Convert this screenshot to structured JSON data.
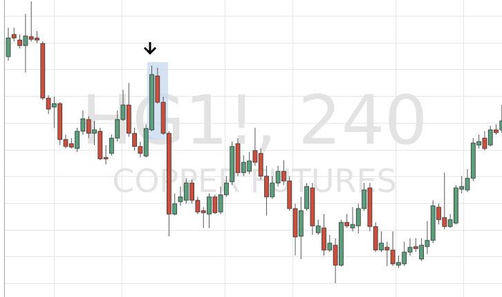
{
  "chart_data": {
    "type": "candlestick",
    "title": "HG1!, 240",
    "subtitle": "COPPER FUTURES",
    "ylim": [
      0,
      430
    ],
    "grid": true,
    "up_color": "#5a9e7b",
    "down_color": "#c9503f",
    "open": [
      348,
      380,
      372,
      364,
      377,
      375,
      367,
      288,
      275,
      280,
      228,
      222,
      215,
      240,
      257,
      237,
      240,
      202,
      208,
      230,
      257,
      278,
      237,
      218,
      204,
      242,
      320,
      282,
      237,
      120,
      138,
      140,
      165,
      140,
      125,
      120,
      145,
      123,
      148,
      167,
      222,
      180,
      182,
      212,
      208,
      175,
      145,
      165,
      182,
      168,
      128,
      88,
      128,
      158,
      93,
      100,
      68,
      75,
      46,
      108,
      100,
      103,
      128,
      158,
      102,
      68,
      72,
      68,
      46,
      48,
      65,
      73,
      55,
      73,
      82,
      130,
      115,
      102,
      107,
      156,
      155,
      172,
      220,
      230,
      220,
      242,
      242
    ],
    "high": [
      390,
      390,
      380,
      410,
      428,
      385,
      370,
      292,
      290,
      282,
      235,
      230,
      245,
      270,
      262,
      255,
      245,
      220,
      235,
      270,
      300,
      310,
      245,
      225,
      250,
      335,
      332,
      290,
      240,
      150,
      160,
      172,
      170,
      145,
      130,
      150,
      148,
      160,
      175,
      225,
      230,
      205,
      210,
      245,
      215,
      190,
      175,
      190,
      198,
      175,
      135,
      145,
      165,
      165,
      112,
      120,
      90,
      85,
      112,
      120,
      130,
      135,
      165,
      165,
      108,
      95,
      80,
      95,
      60,
      80,
      85,
      85,
      85,
      110,
      140,
      135,
      180,
      120,
      162,
      175,
      185,
      230,
      235,
      240,
      248,
      250,
      278
    ],
    "low": [
      342,
      370,
      360,
      325,
      370,
      368,
      285,
      265,
      245,
      220,
      215,
      215,
      210,
      235,
      230,
      220,
      198,
      192,
      205,
      225,
      255,
      232,
      212,
      202,
      202,
      240,
      280,
      235,
      88,
      118,
      132,
      135,
      135,
      120,
      100,
      100,
      120,
      120,
      145,
      162,
      175,
      175,
      178,
      190,
      170,
      118,
      142,
      160,
      162,
      125,
      60,
      55,
      125,
      90,
      90,
      60,
      65,
      20,
      44,
      100,
      95,
      92,
      125,
      95,
      65,
      65,
      45,
      45,
      42,
      45,
      60,
      65,
      52,
      62,
      78,
      105,
      98,
      100,
      105,
      150,
      152,
      168,
      215,
      212,
      218,
      235,
      238
    ],
    "close": [
      375,
      375,
      364,
      378,
      373,
      372,
      288,
      272,
      280,
      228,
      218,
      217,
      240,
      258,
      237,
      242,
      200,
      200,
      230,
      257,
      278,
      237,
      218,
      208,
      244,
      322,
      282,
      237,
      120,
      135,
      145,
      165,
      140,
      123,
      122,
      145,
      122,
      148,
      165,
      218,
      180,
      195,
      197,
      195,
      175,
      145,
      165,
      182,
      168,
      128,
      87,
      125,
      160,
      103,
      103,
      68,
      78,
      46,
      108,
      103,
      105,
      128,
      155,
      102,
      68,
      78,
      68,
      48,
      50,
      65,
      72,
      70,
      75,
      82,
      132,
      112,
      102,
      112,
      158,
      160,
      172,
      223,
      225,
      215,
      242,
      238,
      255
    ]
  }
}
